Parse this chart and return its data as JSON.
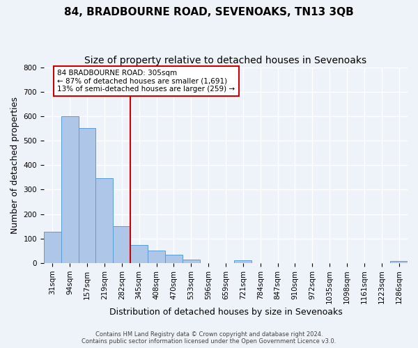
{
  "title": "84, BRADBOURNE ROAD, SEVENOAKS, TN13 3QB",
  "subtitle": "Size of property relative to detached houses in Sevenoaks",
  "xlabel": "Distribution of detached houses by size in Sevenoaks",
  "ylabel": "Number of detached properties",
  "bar_labels": [
    "31sqm",
    "94sqm",
    "157sqm",
    "219sqm",
    "282sqm",
    "345sqm",
    "408sqm",
    "470sqm",
    "533sqm",
    "596sqm",
    "659sqm",
    "721sqm",
    "784sqm",
    "847sqm",
    "910sqm",
    "972sqm",
    "1035sqm",
    "1098sqm",
    "1161sqm",
    "1223sqm",
    "1286sqm"
  ],
  "bar_values": [
    127,
    600,
    551,
    347,
    150,
    75,
    50,
    33,
    13,
    0,
    0,
    10,
    0,
    0,
    0,
    0,
    0,
    0,
    0,
    0,
    9
  ],
  "bar_color": "#aec6e8",
  "bar_edgecolor": "#5b9bd5",
  "vline_x": 4.5,
  "vline_color": "#cc0000",
  "annotation_title": "84 BRADBOURNE ROAD: 305sqm",
  "annotation_line1": "← 87% of detached houses are smaller (1,691)",
  "annotation_line2": "13% of semi-detached houses are larger (259) →",
  "annotation_box_edgecolor": "#cc0000",
  "ylim": [
    0,
    800
  ],
  "yticks": [
    0,
    100,
    200,
    300,
    400,
    500,
    600,
    700,
    800
  ],
  "footer1": "Contains HM Land Registry data © Crown copyright and database right 2024.",
  "footer2": "Contains public sector information licensed under the Open Government Licence v3.0.",
  "bg_color": "#eef2f9",
  "grid_color": "#ffffff",
  "title_fontsize": 11,
  "subtitle_fontsize": 10,
  "axis_label_fontsize": 9,
  "tick_fontsize": 7.5
}
